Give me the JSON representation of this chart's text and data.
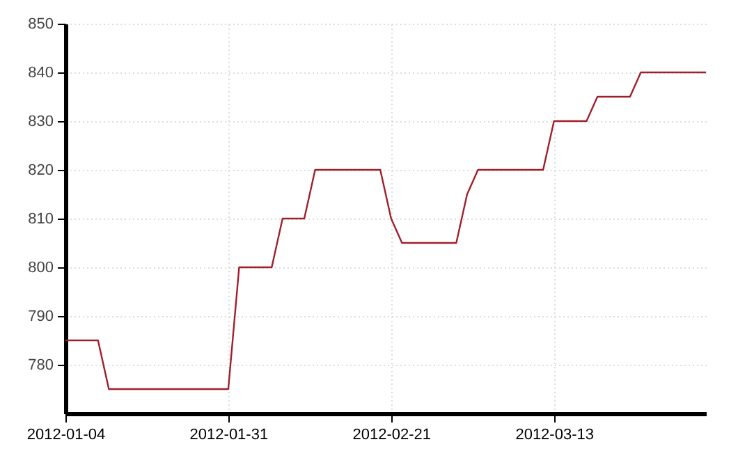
{
  "chart_data": {
    "type": "step",
    "categories": [
      "2012-01-04",
      null,
      null,
      null,
      null,
      null,
      null,
      null,
      null,
      null,
      null,
      null,
      null,
      null,
      null,
      "2012-01-31",
      null,
      null,
      null,
      null,
      null,
      null,
      null,
      null,
      null,
      null,
      null,
      null,
      null,
      null,
      "2012-02-21",
      null,
      null,
      null,
      null,
      null,
      null,
      null,
      null,
      null,
      null,
      null,
      null,
      null,
      null,
      "2012-03-13",
      null,
      null,
      null,
      null,
      null,
      null,
      null,
      null,
      null,
      null,
      null,
      null,
      null,
      null
    ],
    "series": [
      {
        "color": "#a0202a",
        "values": [
          785,
          785,
          785,
          785,
          775,
          775,
          775,
          775,
          775,
          775,
          775,
          775,
          775,
          775,
          775,
          775,
          800,
          800,
          800,
          800,
          810,
          810,
          810,
          820,
          820,
          820,
          820,
          820,
          820,
          820,
          810,
          805,
          805,
          805,
          805,
          805,
          805,
          815,
          820,
          820,
          820,
          820,
          820,
          820,
          820,
          830,
          830,
          830,
          830,
          835,
          835,
          835,
          835,
          840,
          840,
          840,
          840,
          840,
          840,
          840
        ]
      }
    ],
    "ylim": [
      770,
      850
    ],
    "yticks": [
      780,
      790,
      800,
      810,
      820,
      830,
      840,
      850
    ],
    "grid": true
  }
}
